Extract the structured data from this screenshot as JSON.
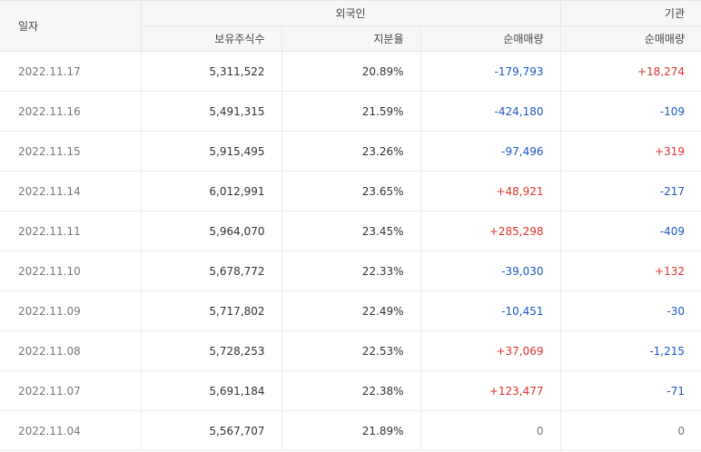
{
  "header": {
    "date": "일자",
    "foreign": "외국인",
    "institution": "기관",
    "holdings": "보유주식수",
    "ratio": "지분율",
    "foreign_net": "순매매량",
    "inst_net": "순매매량"
  },
  "colors": {
    "up": "#e0322f",
    "down": "#1d56c4",
    "flat": "#777777"
  },
  "rows": [
    {
      "date": "2022.11.17",
      "holdings": "5,311,522",
      "ratio": "20.89%",
      "foreign_net": "-179,793",
      "inst_net": "+18,274"
    },
    {
      "date": "2022.11.16",
      "holdings": "5,491,315",
      "ratio": "21.59%",
      "foreign_net": "-424,180",
      "inst_net": "-109"
    },
    {
      "date": "2022.11.15",
      "holdings": "5,915,495",
      "ratio": "23.26%",
      "foreign_net": "-97,496",
      "inst_net": "+319"
    },
    {
      "date": "2022.11.14",
      "holdings": "6,012,991",
      "ratio": "23.65%",
      "foreign_net": "+48,921",
      "inst_net": "-217"
    },
    {
      "date": "2022.11.11",
      "holdings": "5,964,070",
      "ratio": "23.45%",
      "foreign_net": "+285,298",
      "inst_net": "-409"
    },
    {
      "date": "2022.11.10",
      "holdings": "5,678,772",
      "ratio": "22.33%",
      "foreign_net": "-39,030",
      "inst_net": "+132"
    },
    {
      "date": "2022.11.09",
      "holdings": "5,717,802",
      "ratio": "22.49%",
      "foreign_net": "-10,451",
      "inst_net": "-30"
    },
    {
      "date": "2022.11.08",
      "holdings": "5,728,253",
      "ratio": "22.53%",
      "foreign_net": "+37,069",
      "inst_net": "-1,215"
    },
    {
      "date": "2022.11.07",
      "holdings": "5,691,184",
      "ratio": "22.38%",
      "foreign_net": "+123,477",
      "inst_net": "-71"
    },
    {
      "date": "2022.11.04",
      "holdings": "5,567,707",
      "ratio": "21.89%",
      "foreign_net": "0",
      "inst_net": "0"
    }
  ]
}
